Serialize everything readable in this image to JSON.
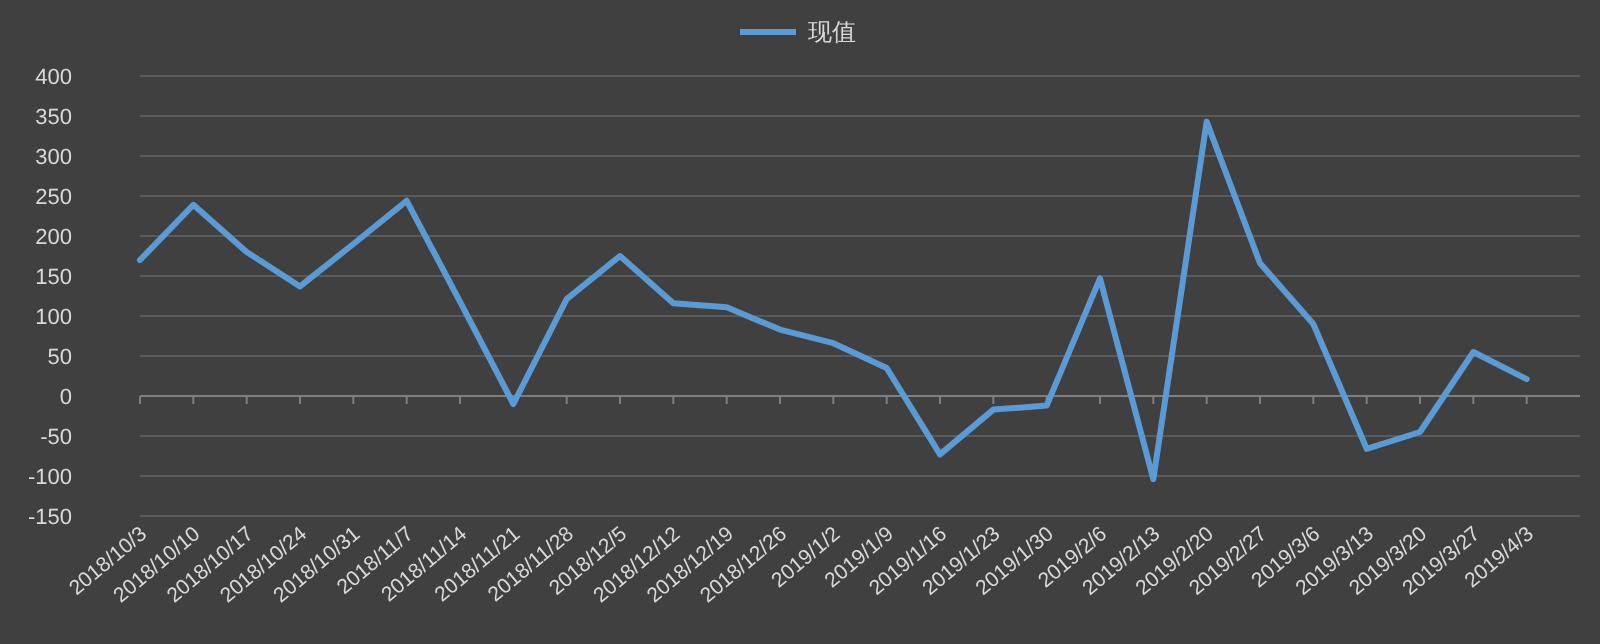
{
  "chart_data": {
    "type": "line",
    "categories": [
      "2018/10/3",
      "2018/10/10",
      "2018/10/17",
      "2018/10/24",
      "2018/10/31",
      "2018/11/7",
      "2018/11/14",
      "2018/11/21",
      "2018/11/28",
      "2018/12/5",
      "2018/12/12",
      "2018/12/19",
      "2018/12/26",
      "2019/1/2",
      "2019/1/9",
      "2019/1/16",
      "2019/1/23",
      "2019/1/30",
      "2019/2/6",
      "2019/2/13",
      "2019/2/20",
      "2019/2/27",
      "2019/3/6",
      "2019/3/13",
      "2019/3/20",
      "2019/3/27",
      "2019/4/3"
    ],
    "series": [
      {
        "name": "现值",
        "color": "#5b9bd5",
        "values": [
          170,
          239,
          180,
          137,
          190,
          244,
          118,
          -10,
          121,
          175,
          116,
          111,
          83,
          66,
          35,
          -73,
          -17,
          -12,
          147,
          -104,
          343,
          166,
          90,
          -66,
          -45,
          55,
          21
        ]
      }
    ],
    "ylim": [
      -150,
      400
    ],
    "yticks": [
      -150,
      -100,
      -50,
      0,
      50,
      100,
      150,
      200,
      250,
      300,
      350,
      400
    ],
    "grid": "y",
    "legend": "top",
    "marker": "none",
    "line_style": "solid"
  }
}
